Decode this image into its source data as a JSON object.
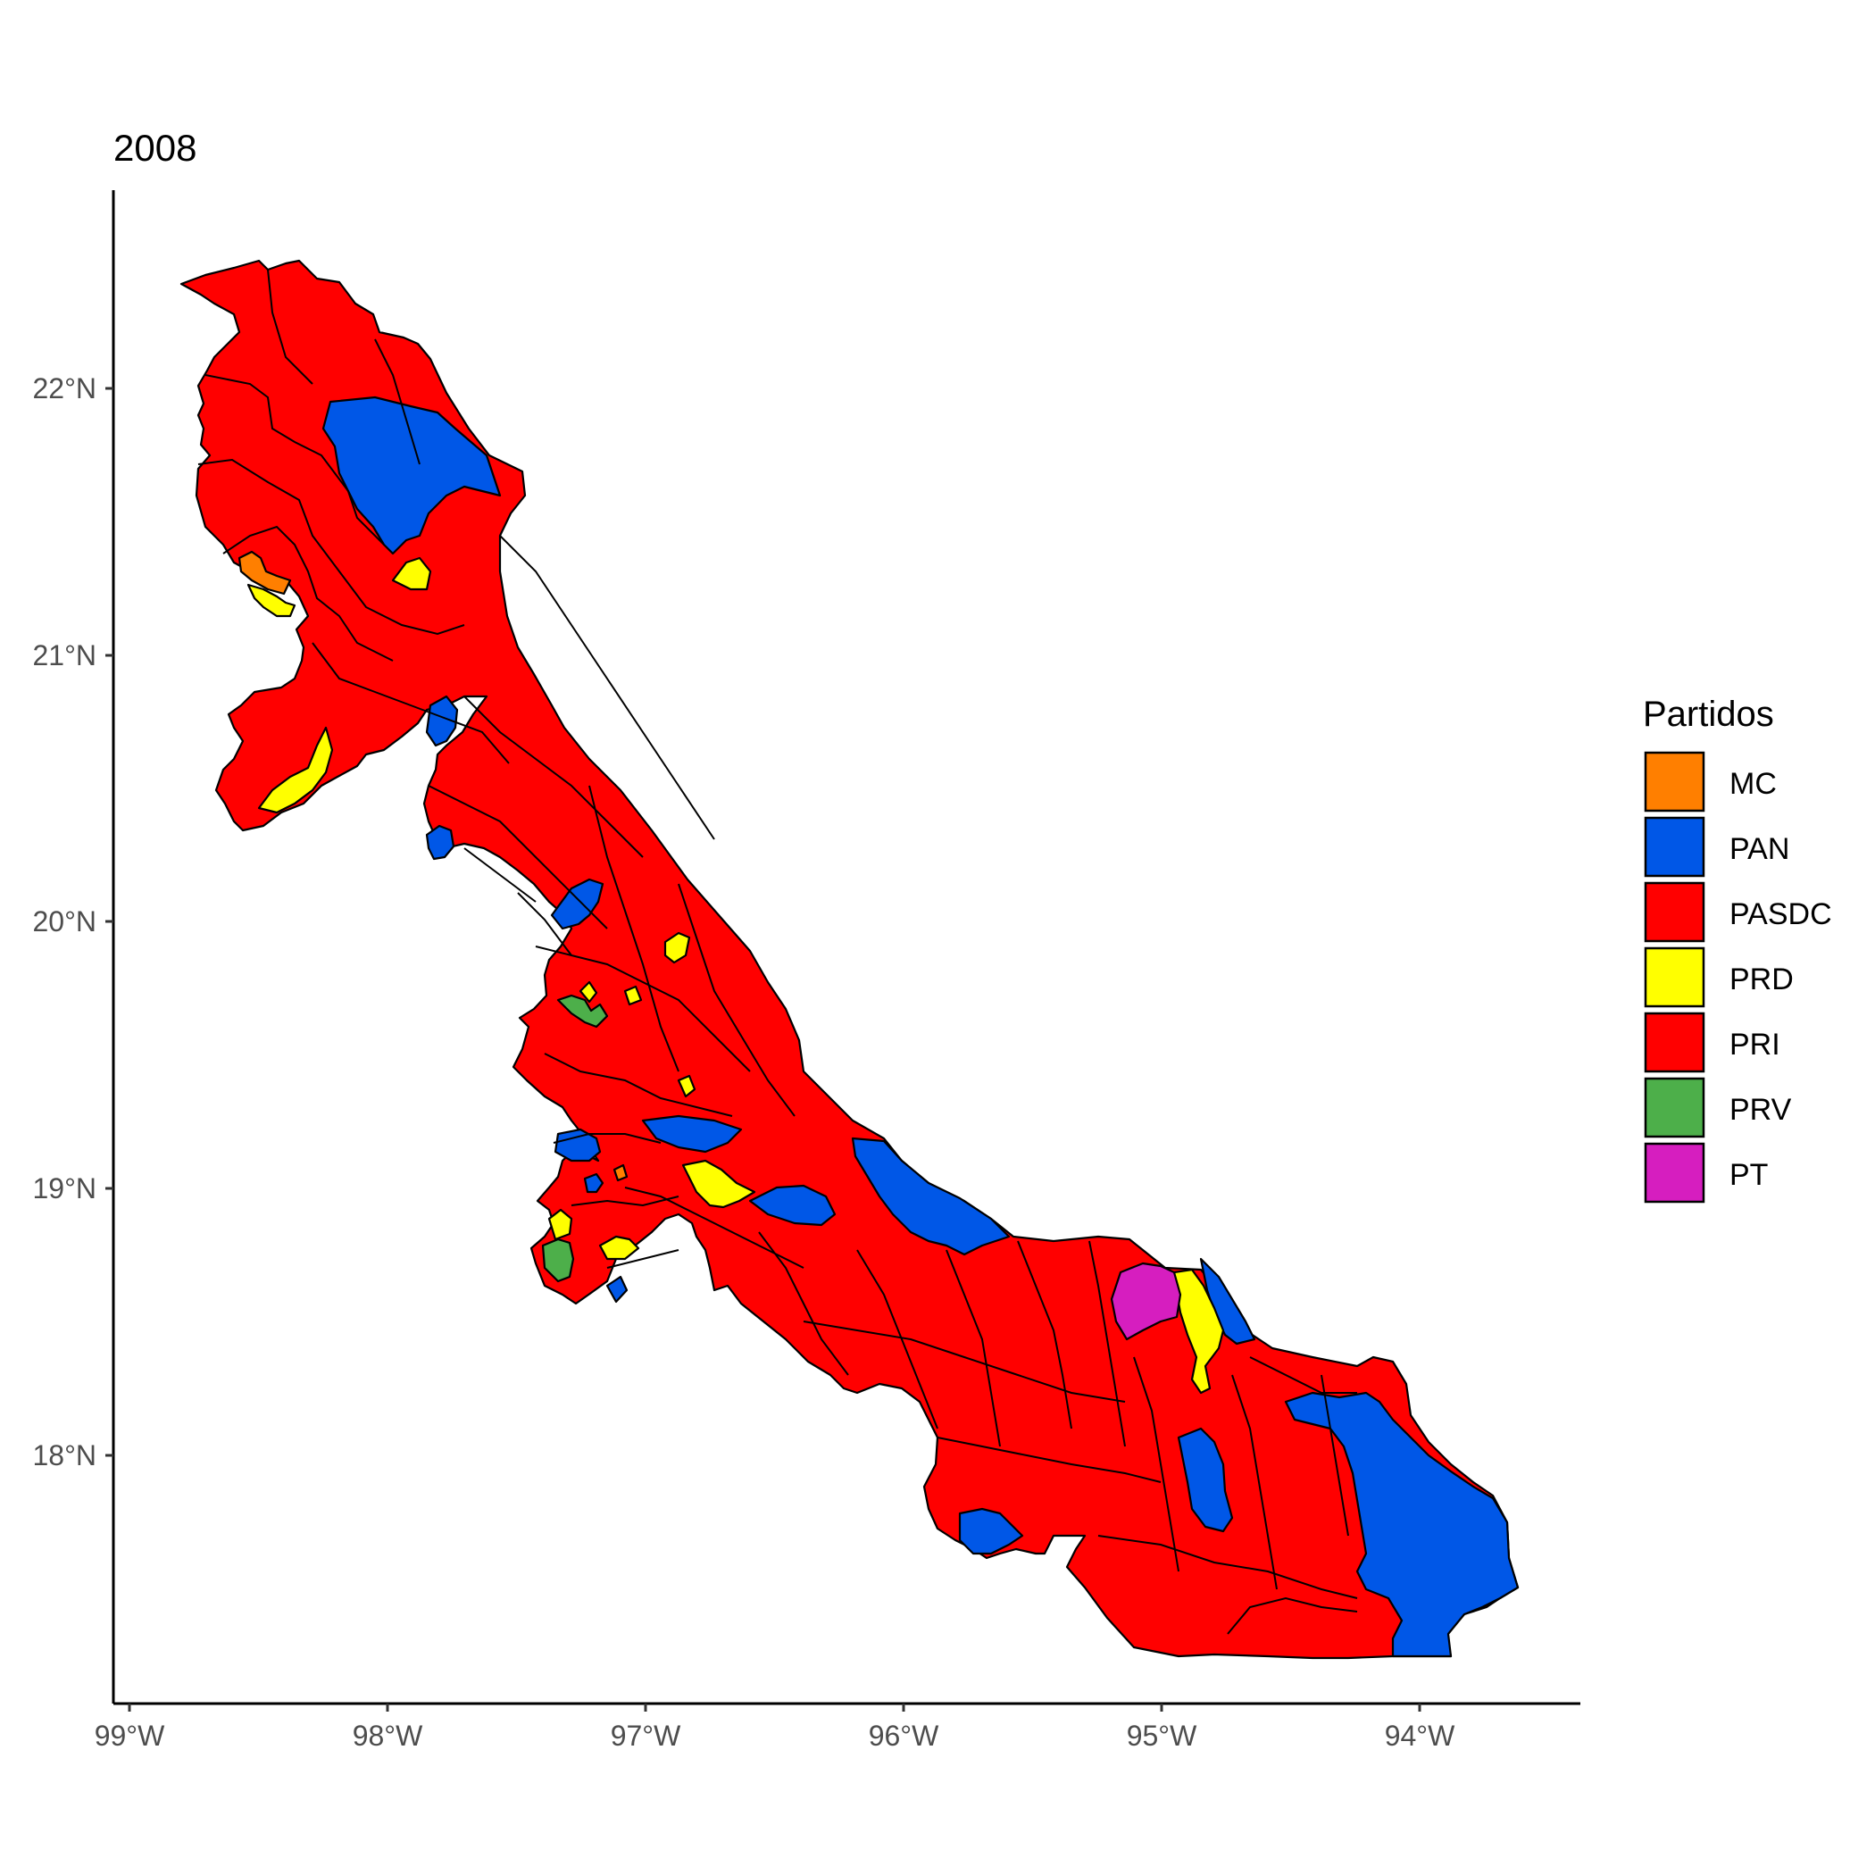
{
  "title": "2008",
  "axes": {
    "x_ticks": [
      "99°W",
      "98°W",
      "97°W",
      "96°W",
      "95°W",
      "94°W"
    ],
    "y_ticks": [
      "22°N",
      "21°N",
      "20°N",
      "19°N",
      "18°N"
    ]
  },
  "legend": {
    "title": "Partidos",
    "entries": [
      {
        "label": "MC",
        "color": "#FF7F00"
      },
      {
        "label": "PAN",
        "color": "#0057E7"
      },
      {
        "label": "PASDC",
        "color": "#FF0000"
      },
      {
        "label": "PRD",
        "color": "#FFFF00"
      },
      {
        "label": "PRI",
        "color": "#FF0000"
      },
      {
        "label": "PRV",
        "color": "#4DAF4A"
      },
      {
        "label": "PT",
        "color": "#D61EBF"
      }
    ]
  },
  "colors": {
    "MC": "#FF7F00",
    "PAN": "#0057E7",
    "PRD": "#FFFF00",
    "PRI": "#FF0000",
    "PRV": "#4DAF4A",
    "PT": "#D61EBF"
  }
}
